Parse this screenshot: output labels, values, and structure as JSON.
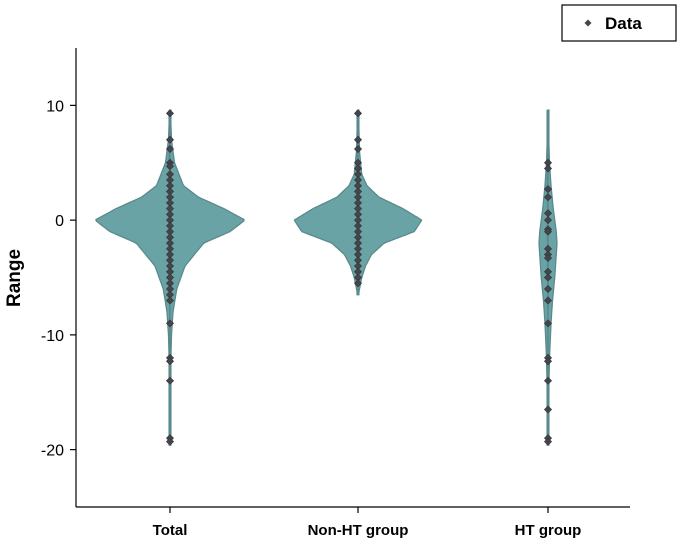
{
  "chart_data": {
    "type": "violin",
    "categories": [
      "Total",
      "Non-HT group",
      "HT group"
    ],
    "ylabel": "Range",
    "ylim": [
      -25,
      15
    ],
    "yticks": [
      10,
      0,
      -10,
      -20
    ],
    "legend": {
      "entries": [
        "Data"
      ],
      "placement": "top-right"
    },
    "colors": {
      "violin_fill": "#6aa3a5",
      "violin_stroke": "#5a8a8c",
      "point": "#44464c"
    },
    "series": [
      {
        "category": "Total",
        "range": [
          -19.6,
          9.6
        ],
        "density": [
          [
            -19.6,
            0.005
          ],
          [
            -15,
            0.01
          ],
          [
            -12,
            0.012
          ],
          [
            -10,
            0.02
          ],
          [
            -8,
            0.04
          ],
          [
            -6,
            0.09
          ],
          [
            -4,
            0.2
          ],
          [
            -2,
            0.45
          ],
          [
            -1,
            0.8
          ],
          [
            0,
            1.0
          ],
          [
            1,
            0.72
          ],
          [
            2,
            0.38
          ],
          [
            3,
            0.18
          ],
          [
            5,
            0.06
          ],
          [
            7,
            0.02
          ],
          [
            9.6,
            0.005
          ]
        ],
        "points": [
          9.3,
          7,
          6.2,
          5,
          4.7,
          4,
          3.5,
          3,
          2.5,
          2,
          1.5,
          1,
          0.5,
          0,
          -0.5,
          -1,
          -1.5,
          -2,
          -2.5,
          -3,
          -3.5,
          -4,
          -4.5,
          -5,
          -5.5,
          -6,
          -6.5,
          -7,
          -9,
          -12,
          -12.3,
          -14,
          -19,
          -19.3
        ]
      },
      {
        "category": "Non-HT group",
        "range": [
          -6.5,
          9.6
        ],
        "density": [
          [
            -6.5,
            0.005
          ],
          [
            -5,
            0.05
          ],
          [
            -4,
            0.1
          ],
          [
            -3,
            0.18
          ],
          [
            -2,
            0.35
          ],
          [
            -1,
            0.75
          ],
          [
            0,
            0.85
          ],
          [
            1,
            0.6
          ],
          [
            2,
            0.28
          ],
          [
            3,
            0.12
          ],
          [
            4,
            0.05
          ],
          [
            6,
            0.02
          ],
          [
            9.6,
            0.005
          ]
        ],
        "points": [
          9.3,
          7,
          6.2,
          5,
          4.5,
          4,
          3.5,
          3,
          2.5,
          2,
          1.5,
          1,
          0.5,
          0,
          -0.5,
          -1,
          -1.5,
          -2,
          -2.5,
          -3,
          -3.5,
          -4,
          -4.5,
          -5,
          -5.5
        ]
      },
      {
        "category": "HT group",
        "range": [
          -19.6,
          9.6
        ],
        "density": [
          [
            -19.6,
            0.003
          ],
          [
            -15,
            0.01
          ],
          [
            -12,
            0.02
          ],
          [
            -9,
            0.04
          ],
          [
            -7,
            0.06
          ],
          [
            -5,
            0.09
          ],
          [
            -3,
            0.11
          ],
          [
            -2,
            0.12
          ],
          [
            -1,
            0.11
          ],
          [
            1,
            0.07
          ],
          [
            3,
            0.04
          ],
          [
            5,
            0.02
          ],
          [
            7,
            0.01
          ],
          [
            9.6,
            0.003
          ]
        ],
        "points": [
          5,
          4.5,
          2.7,
          2,
          0.6,
          0,
          -0.8,
          -1,
          -2.5,
          -3,
          -3.3,
          -4.5,
          -5,
          -6,
          -7,
          -9,
          -12,
          -12.3,
          -14,
          -16.5,
          -19,
          -19.3
        ]
      }
    ]
  }
}
